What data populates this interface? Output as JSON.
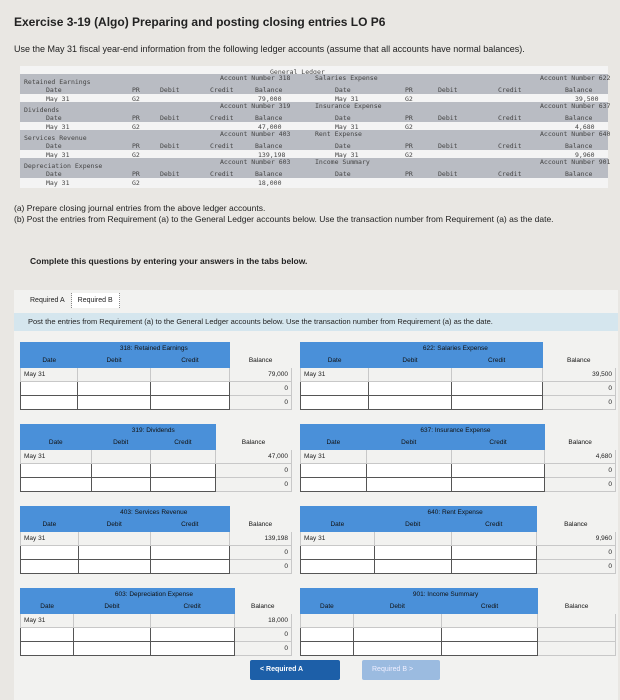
{
  "title": "Exercise 3-19 (Algo) Preparing and posting closing entries LO P6",
  "intro": "Use the May 31 fiscal year-end information from the following ledger accounts (assume that all accounts have normal balances).",
  "general_ledger": {
    "heading": "General Ledger",
    "col_labels": {
      "date": "Date",
      "pr": "PR",
      "debit": "Debit",
      "credit": "Credit",
      "balance": "Balance"
    },
    "rows": [
      {
        "left_name": "Retained Earnings",
        "left_number": "Account Number 318",
        "left_date": "May 31",
        "left_pr": "G2",
        "left_balance": "79,000",
        "right_name": "Salaries Expense",
        "right_number": "Account Number 622",
        "right_date": "May 31",
        "right_pr": "G2",
        "right_balance": "39,500"
      },
      {
        "left_name": "Dividends",
        "left_number": "Account Number 319",
        "left_date": "May 31",
        "left_pr": "G2",
        "left_balance": "47,000",
        "right_name": "Insurance Expense",
        "right_number": "Account Number 637",
        "right_date": "May 31",
        "right_pr": "G2",
        "right_balance": "4,680"
      },
      {
        "left_name": "Services Revenue",
        "left_number": "Account Number 403",
        "left_date": "May 31",
        "left_pr": "G2",
        "left_balance": "139,198",
        "right_name": "Rent Expense",
        "right_number": "Account Number 640",
        "right_date": "May 31",
        "right_pr": "G2",
        "right_balance": "9,960"
      },
      {
        "left_name": "Depreciation Expense",
        "left_number": "Account Number 603",
        "left_date": "May 31",
        "left_pr": "G2",
        "left_balance": "18,000",
        "right_name": "Income Summary",
        "right_number": "Account Number 901",
        "right_date": "",
        "right_pr": "",
        "right_balance": ""
      }
    ]
  },
  "requirements": {
    "a": "(a) Prepare closing journal entries from the above ledger accounts.",
    "b": "(b) Post the entries from Requirement (a) to the General Ledger accounts below. Use the transaction number from Requirement (a) as the date."
  },
  "complete": "Complete this questions by entering your answers in the tabs below.",
  "tabs": [
    {
      "label": "Required A"
    },
    {
      "label": "Required B"
    }
  ],
  "instruction": "Post the entries from Requirement (a) to the General Ledger accounts below. Use the transaction number from Requirement (a) as the date.",
  "t_headers": {
    "date": "Date",
    "debit": "Debit",
    "credit": "Credit",
    "balance": "Balance"
  },
  "accounts": [
    {
      "title": "318: Retained Earnings",
      "date": "May 31",
      "balance": "79,000",
      "rows": [
        "0",
        "0"
      ]
    },
    {
      "title": "622: Salaries Expense",
      "date": "May 31",
      "balance": "39,500",
      "rows": [
        "0",
        "0"
      ]
    },
    {
      "title": "319: Dividends",
      "date": "May 31",
      "balance": "47,000",
      "rows": [
        "0",
        "0"
      ]
    },
    {
      "title": "637: Insurance Expense",
      "date": "May 31",
      "balance": "4,680",
      "rows": [
        "0",
        "0"
      ]
    },
    {
      "title": "403: Services Revenue",
      "date": "May 31",
      "balance": "139,198",
      "rows": [
        "0",
        "0"
      ]
    },
    {
      "title": "640: Rent Expense",
      "date": "May 31",
      "balance": "9,960",
      "rows": [
        "0",
        "0"
      ]
    },
    {
      "title": "603: Depreciation Expense",
      "date": "May 31",
      "balance": "18,000",
      "rows": [
        "0",
        "0"
      ]
    },
    {
      "title": "901: Income Summary",
      "date": "",
      "balance": "",
      "rows": []
    }
  ],
  "nav": {
    "prev": "< Required A",
    "next": "Required B >"
  },
  "colors": {
    "header_blue": "#4a90d9",
    "instruction_bg": "#d5e6ee",
    "nav_active": "#1d5fa8",
    "nav_disabled": "#9bbbe0"
  }
}
